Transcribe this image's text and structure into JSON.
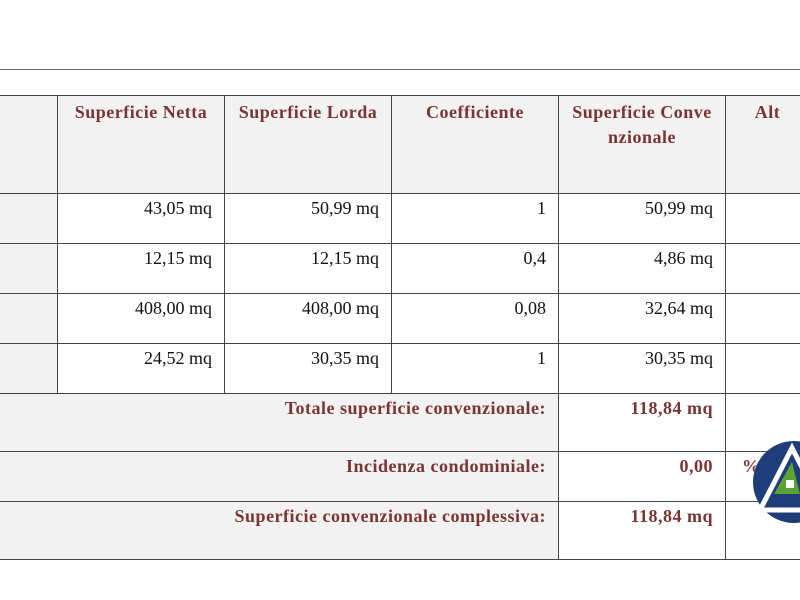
{
  "table": {
    "headers": [
      "Superficie Netta",
      "Superficie Lorda",
      "Coefficiente",
      "Superficie Convenzionale",
      "Alt"
    ],
    "rows": [
      [
        "43,05 mq",
        "50,99 mq",
        "1",
        "50,99 mq"
      ],
      [
        "12,15 mq",
        "12,15 mq",
        "0,4",
        "4,86 mq"
      ],
      [
        "408,00 mq",
        "408,00 mq",
        "0,08",
        "32,64 mq"
      ],
      [
        "24,52 mq",
        "30,35 mq",
        "1",
        "30,35 mq"
      ]
    ],
    "totals": [
      {
        "label": "Totale superficie convenzionale:",
        "value": "118,84 mq"
      },
      {
        "label": "Incidenza condominiale:",
        "value": "0,00",
        "unit": "%"
      },
      {
        "label": "Superficie convenzionale complessiva:",
        "value": "118,84 mq"
      }
    ]
  }
}
